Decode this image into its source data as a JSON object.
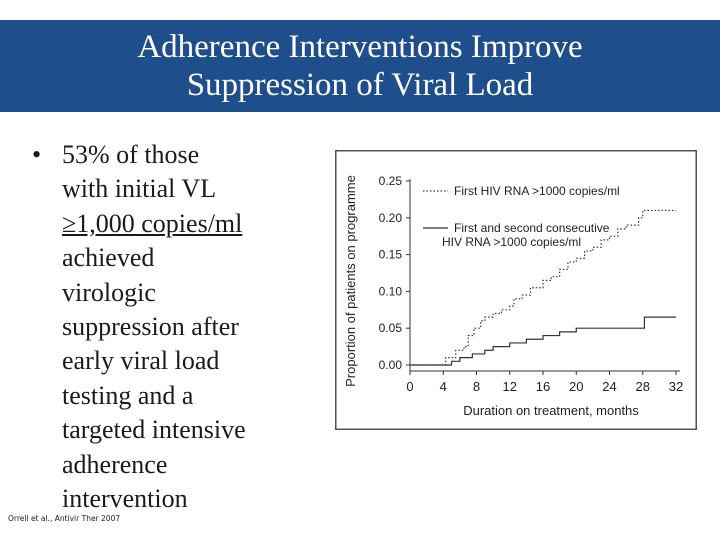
{
  "slide": {
    "title_lines": [
      "Adherence Interventions Improve",
      "Suppression of Viral Load"
    ],
    "bullet_symbol": "•",
    "bullet_lines": [
      "53% of those",
      "with initial VL",
      "≥1,000 copies/ml",
      "achieved",
      "virologic",
      "suppression after",
      "early viral load",
      "testing and a",
      "targeted intensive",
      "adherence",
      "intervention"
    ],
    "citation": "Orrell et al., Antivir Ther 2007",
    "colors": {
      "title_bar": "#1f4e8c",
      "title_text": "#ffffff",
      "body_text": "#1a1a1a",
      "chart_line": "#333333"
    }
  },
  "chart_data": {
    "type": "line",
    "title": "",
    "xlabel": "Duration on treatment, months",
    "ylabel": "Proportion of patients on programme",
    "xlim": [
      0,
      32
    ],
    "ylim": [
      0,
      0.25
    ],
    "xticks": [
      "0",
      "4",
      "8",
      "12",
      "16",
      "20",
      "24",
      "28",
      "32"
    ],
    "yticks": [
      "0.00",
      "0.05",
      "0.10",
      "0.15",
      "0.20",
      "0.25"
    ],
    "grid": false,
    "legend_position": "top-right",
    "series": [
      {
        "name": "First HIV RNA >1000 copies/ml",
        "style": "dotted",
        "points": [
          [
            0,
            0.0
          ],
          [
            4,
            0.0
          ],
          [
            4.3,
            0.01
          ],
          [
            5,
            0.01
          ],
          [
            5.5,
            0.02
          ],
          [
            6.5,
            0.025
          ],
          [
            7,
            0.04
          ],
          [
            7.7,
            0.05
          ],
          [
            8.5,
            0.06
          ],
          [
            9,
            0.065
          ],
          [
            10,
            0.07
          ],
          [
            11,
            0.075
          ],
          [
            12,
            0.08
          ],
          [
            12.5,
            0.09
          ],
          [
            13.5,
            0.095
          ],
          [
            14.5,
            0.105
          ],
          [
            16,
            0.115
          ],
          [
            17,
            0.12
          ],
          [
            18,
            0.13
          ],
          [
            19,
            0.14
          ],
          [
            20,
            0.145
          ],
          [
            21,
            0.155
          ],
          [
            22,
            0.16
          ],
          [
            23,
            0.17
          ],
          [
            24,
            0.175
          ],
          [
            25,
            0.185
          ],
          [
            26,
            0.19
          ],
          [
            27.5,
            0.2
          ],
          [
            28,
            0.21
          ],
          [
            30,
            0.21
          ],
          [
            32,
            0.21
          ]
        ]
      },
      {
        "name": "First and second consecutive HIV RNA >1000 copies/ml",
        "style": "solid",
        "points": [
          [
            0,
            0.0
          ],
          [
            4,
            0.0
          ],
          [
            5,
            0.005
          ],
          [
            6,
            0.01
          ],
          [
            7.5,
            0.015
          ],
          [
            9,
            0.02
          ],
          [
            10,
            0.025
          ],
          [
            12,
            0.03
          ],
          [
            14,
            0.035
          ],
          [
            16,
            0.04
          ],
          [
            18,
            0.045
          ],
          [
            20,
            0.05
          ],
          [
            28,
            0.05
          ],
          [
            28.2,
            0.065
          ],
          [
            32,
            0.065
          ]
        ]
      }
    ]
  }
}
